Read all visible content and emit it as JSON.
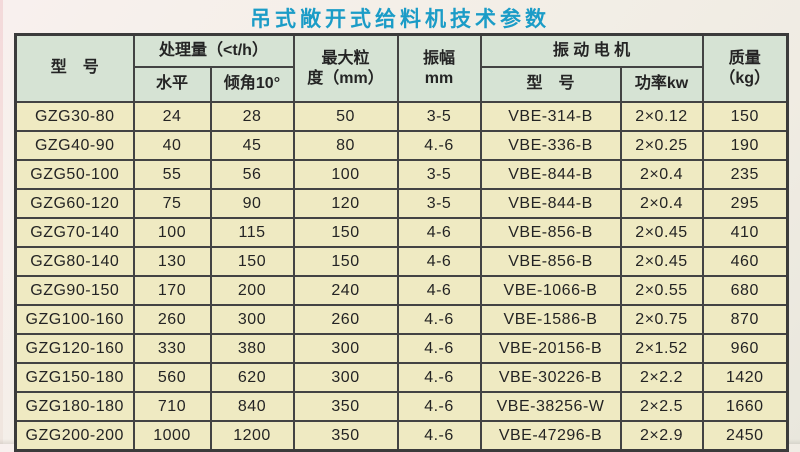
{
  "page": {
    "title": "吊式敞开式给料机技术参数"
  },
  "colors": {
    "title_text": "#1b9cc7",
    "header_bg": "#d6e3d4",
    "row_bg": "#efeac2",
    "border": "#3b3b3b",
    "page_bg": "#f3efe8"
  },
  "table": {
    "headers": {
      "model": "型　号",
      "capacity_group": "处理量（<t/h）",
      "capacity_horizontal": "水平",
      "capacity_incline": "倾角10°",
      "max_size_line1": "最大粒",
      "max_size_line2": "度（mm）",
      "amplitude_line1": "振幅",
      "amplitude_line2": "mm",
      "motor_group": "振 动 电 机",
      "motor_model": "型　号",
      "motor_power": "功率kw",
      "mass_line1": "质量",
      "mass_line2": "（kg）"
    },
    "rows": [
      [
        "GZG30-80",
        "24",
        "28",
        "50",
        "3-5",
        "VBE-314-B",
        "2×0.12",
        "150"
      ],
      [
        "GZG40-90",
        "40",
        "45",
        "80",
        "4.-6",
        "VBE-336-B",
        "2×0.25",
        "190"
      ],
      [
        "GZG50-100",
        "55",
        "56",
        "100",
        "3-5",
        "VBE-844-B",
        "2×0.4",
        "235"
      ],
      [
        "GZG60-120",
        "75",
        "90",
        "120",
        "3-5",
        "VBE-844-B",
        "2×0.4",
        "295"
      ],
      [
        "GZG70-140",
        "100",
        "115",
        "150",
        "4-6",
        "VBE-856-B",
        "2×0.45",
        "410"
      ],
      [
        "GZG80-140",
        "130",
        "150",
        "150",
        "4-6",
        "VBE-856-B",
        "2×0.45",
        "460"
      ],
      [
        "GZG90-150",
        "170",
        "200",
        "240",
        "4-6",
        "VBE-1066-B",
        "2×0.55",
        "680"
      ],
      [
        "GZG100-160",
        "260",
        "300",
        "260",
        "4.-6",
        "VBE-1586-B",
        "2×0.75",
        "870"
      ],
      [
        "GZG120-160",
        "330",
        "380",
        "300",
        "4.-6",
        "VBE-20156-B",
        "2×1.52",
        "960"
      ],
      [
        "GZG150-180",
        "560",
        "620",
        "300",
        "4.-6",
        "VBE-30226-B",
        "2×2.2",
        "1420"
      ],
      [
        "GZG180-180",
        "710",
        "840",
        "350",
        "4.-6",
        "VBE-38256-W",
        "2×2.5",
        "1660"
      ],
      [
        "GZG200-200",
        "1000",
        "1200",
        "350",
        "4.-6",
        "VBE-47296-B",
        "2×2.9",
        "2450"
      ]
    ]
  }
}
